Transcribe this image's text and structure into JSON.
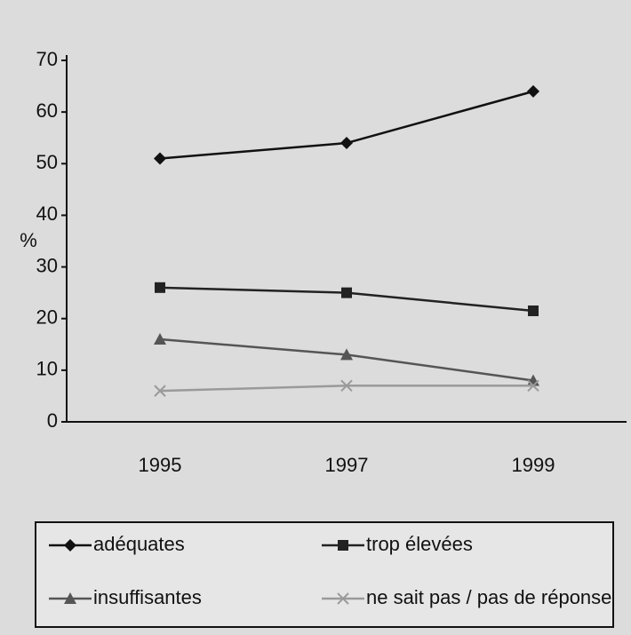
{
  "chart_data": {
    "type": "line",
    "y_label": "%",
    "categories": [
      "1995",
      "1997",
      "1999"
    ],
    "series": [
      {
        "name": "adéquates",
        "color": "#111111",
        "marker": "diamond",
        "values": [
          51,
          54,
          64
        ]
      },
      {
        "name": "trop élevées",
        "color": "#222222",
        "marker": "square",
        "values": [
          26,
          25,
          21.5
        ]
      },
      {
        "name": "insuffisantes",
        "color": "#555555",
        "marker": "triangle",
        "values": [
          16,
          13,
          8
        ]
      },
      {
        "name": "ne sait pas / pas de réponse",
        "color": "#9a9a9a",
        "marker": "x",
        "values": [
          6,
          7,
          7
        ]
      }
    ],
    "ylim": [
      0,
      70
    ],
    "yticks": [
      0,
      10,
      20,
      30,
      40,
      50,
      60,
      70
    ],
    "legend": "bottom"
  }
}
